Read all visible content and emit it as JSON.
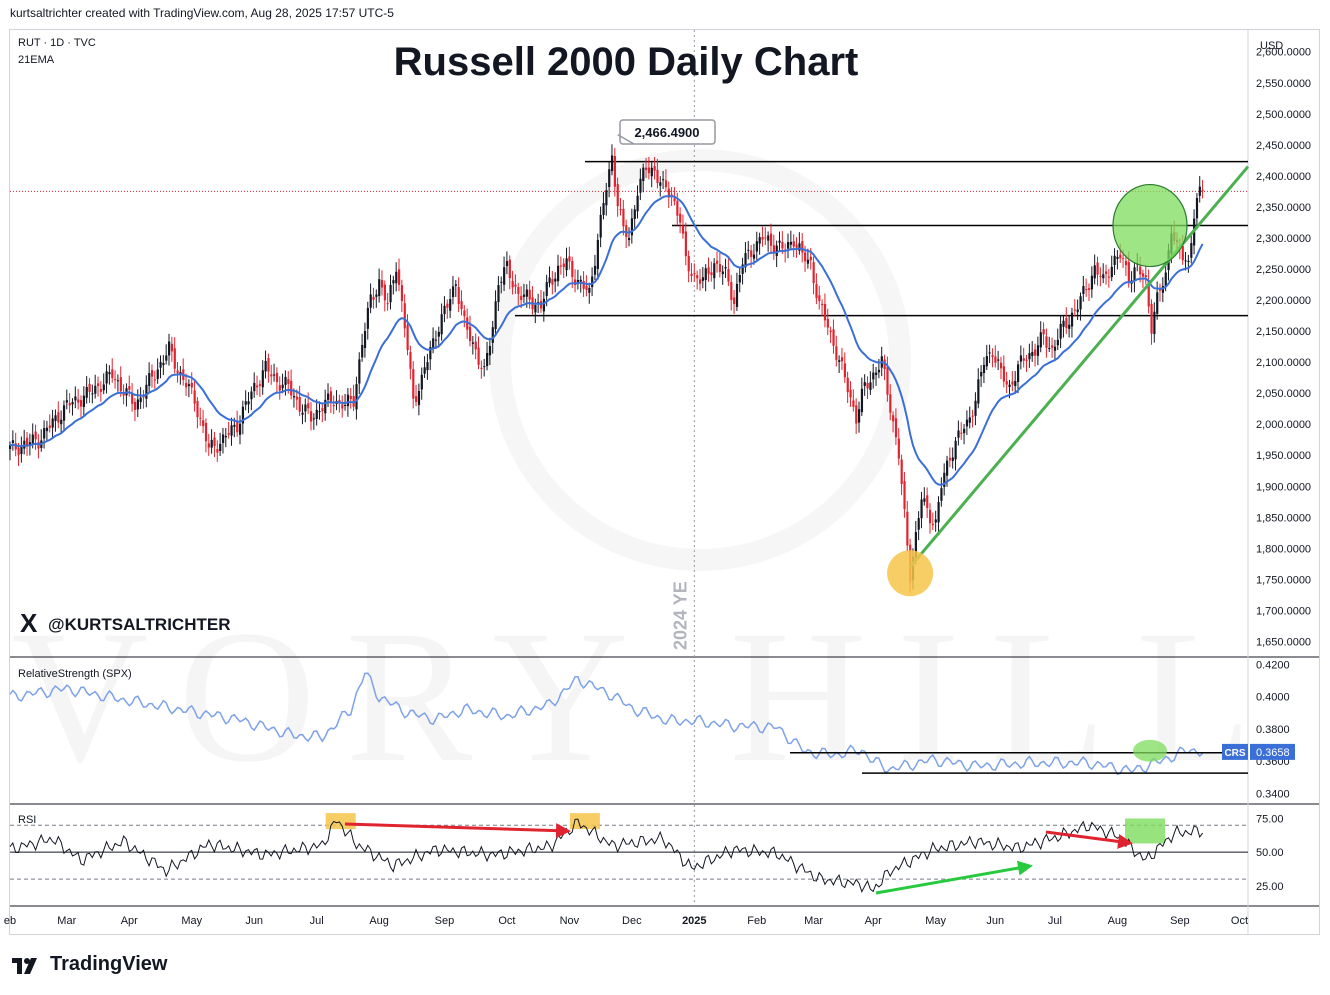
{
  "header": {
    "attribution": "kurtsaltrichter created with TradingView.com, Aug 28, 2025 17:57 UTC-5"
  },
  "footer": {
    "brand": "TradingView"
  },
  "watermark": {
    "handle": "@KURTSALTRICHTER",
    "brand": "IVORY HILL"
  },
  "colors": {
    "up": "#131722",
    "down": "#e0242f",
    "ema": "#3b6fd8",
    "rs": "#7da2e8",
    "trendline": "#4caf50",
    "support": "#000000",
    "rsi": "#131722",
    "callout_border": "#9598a1",
    "highlight_orange": "#f6c54a",
    "highlight_green": "#7ddc5c"
  },
  "chart_data": [
    {
      "type": "candlestick",
      "title": "Russell 2000 Daily Chart",
      "symbol_line": "RUT · 1D · TVC",
      "indicator": "21EMA",
      "currency": "USD",
      "y_ticks": [
        "2,600.0000",
        "2,550.0000",
        "2,500.0000",
        "2,450.0000",
        "2,400.0000",
        "2,350.0000",
        "2,300.0000",
        "2,250.0000",
        "2,200.0000",
        "2,150.0000",
        "2,100.0000",
        "2,050.0000",
        "2,000.0000",
        "1,950.0000",
        "1,900.0000",
        "1,850.0000",
        "1,800.0000",
        "1,750.0000",
        "1,700.0000",
        "1,650.0000"
      ],
      "ylim": [
        1625,
        2635
      ],
      "callout": {
        "label": "2,466.4900",
        "value": 2466.49
      },
      "vertical_label": "2024 YE",
      "horizontal_levels": [
        2423,
        2320,
        2175
      ],
      "dotted_level": 2375,
      "close_path": [
        [
          0,
          1960
        ],
        [
          10,
          1975
        ],
        [
          20,
          2030
        ],
        [
          28,
          2050
        ],
        [
          36,
          2080
        ],
        [
          44,
          2030
        ],
        [
          50,
          2075
        ],
        [
          56,
          2120
        ],
        [
          60,
          2080
        ],
        [
          65,
          2040
        ],
        [
          70,
          1960
        ],
        [
          75,
          1975
        ],
        [
          80,
          2000
        ],
        [
          86,
          2060
        ],
        [
          90,
          2090
        ],
        [
          94,
          2070
        ],
        [
          98,
          2060
        ],
        [
          102,
          2030
        ],
        [
          106,
          2010
        ],
        [
          110,
          2030
        ],
        [
          114,
          2040
        ],
        [
          118,
          2030
        ],
        [
          121,
          2040
        ],
        [
          124,
          2130
        ],
        [
          127,
          2200
        ],
        [
          130,
          2230
        ],
        [
          133,
          2190
        ],
        [
          136,
          2260
        ],
        [
          138,
          2190
        ],
        [
          140,
          2120
        ],
        [
          142,
          2040
        ],
        [
          145,
          2070
        ],
        [
          148,
          2120
        ],
        [
          151,
          2160
        ],
        [
          154,
          2190
        ],
        [
          157,
          2230
        ],
        [
          160,
          2160
        ],
        [
          164,
          2120
        ],
        [
          167,
          2080
        ],
        [
          170,
          2160
        ],
        [
          172,
          2230
        ],
        [
          175,
          2250
        ],
        [
          179,
          2210
        ],
        [
          183,
          2200
        ],
        [
          187,
          2190
        ],
        [
          190,
          2230
        ],
        [
          193,
          2250
        ],
        [
          196,
          2260
        ],
        [
          200,
          2230
        ],
        [
          204,
          2210
        ],
        [
          207,
          2300
        ],
        [
          210,
          2380
        ],
        [
          212,
          2430
        ],
        [
          214,
          2360
        ],
        [
          216,
          2310
        ],
        [
          218,
          2300
        ],
        [
          221,
          2380
        ],
        [
          224,
          2410
        ],
        [
          227,
          2410
        ],
        [
          230,
          2380
        ],
        [
          233,
          2370
        ],
        [
          236,
          2330
        ],
        [
          238,
          2260
        ],
        [
          241,
          2240
        ],
        [
          244,
          2230
        ],
        [
          248,
          2260
        ],
        [
          252,
          2240
        ],
        [
          255,
          2200
        ],
        [
          258,
          2260
        ],
        [
          261,
          2280
        ],
        [
          265,
          2300
        ],
        [
          269,
          2290
        ],
        [
          273,
          2280
        ],
        [
          276,
          2300
        ],
        [
          279,
          2270
        ],
        [
          282,
          2260
        ],
        [
          285,
          2190
        ],
        [
          288,
          2160
        ],
        [
          292,
          2100
        ],
        [
          295,
          2060
        ],
        [
          298,
          2010
        ],
        [
          301,
          2060
        ],
        [
          304,
          2080
        ],
        [
          307,
          2100
        ],
        [
          310,
          2030
        ],
        [
          313,
          1950
        ],
        [
          315,
          1850
        ],
        [
          317,
          1760
        ],
        [
          319,
          1820
        ],
        [
          321,
          1880
        ],
        [
          323,
          1860
        ],
        [
          326,
          1840
        ],
        [
          328,
          1900
        ],
        [
          331,
          1950
        ],
        [
          334,
          1980
        ],
        [
          337,
          2000
        ],
        [
          340,
          2040
        ],
        [
          343,
          2100
        ],
        [
          346,
          2120
        ],
        [
          349,
          2080
        ],
        [
          352,
          2060
        ],
        [
          355,
          2090
        ],
        [
          358,
          2110
        ],
        [
          361,
          2120
        ],
        [
          364,
          2140
        ],
        [
          367,
          2120
        ],
        [
          370,
          2150
        ],
        [
          373,
          2170
        ],
        [
          376,
          2190
        ],
        [
          379,
          2220
        ],
        [
          382,
          2250
        ],
        [
          385,
          2230
        ],
        [
          388,
          2260
        ],
        [
          391,
          2270
        ],
        [
          394,
          2240
        ],
        [
          397,
          2250
        ],
        [
          400,
          2230
        ],
        [
          402,
          2160
        ],
        [
          404,
          2200
        ],
        [
          407,
          2240
        ],
        [
          409,
          2320
        ],
        [
          411,
          2280
        ],
        [
          413,
          2270
        ],
        [
          415,
          2260
        ],
        [
          417,
          2340
        ],
        [
          419,
          2370
        ],
        [
          420,
          2380
        ]
      ],
      "x_ticks": [
        [
          "eb",
          0
        ],
        [
          "Mar",
          20
        ],
        [
          "Apr",
          42
        ],
        [
          "May",
          64
        ],
        [
          "Jun",
          86
        ],
        [
          "Jul",
          108
        ],
        [
          "Aug",
          130
        ],
        [
          "Sep",
          153
        ],
        [
          "Oct",
          175
        ],
        [
          "Nov",
          197
        ],
        [
          "Dec",
          219
        ],
        [
          "2025",
          241
        ],
        [
          "Feb",
          263
        ],
        [
          "Mar",
          283
        ],
        [
          "Apr",
          304
        ],
        [
          "May",
          326
        ],
        [
          "Jun",
          347
        ],
        [
          "Jul",
          368
        ],
        [
          "Aug",
          390
        ],
        [
          "Sep",
          412
        ],
        [
          "Oct",
          433
        ]
      ]
    },
    {
      "type": "line",
      "title": "RelativeStrength (SPX)",
      "y_ticks": [
        "0.4200",
        "0.4000",
        "0.3800",
        "0.3600",
        "0.3400"
      ],
      "ylim": [
        0.3335,
        0.424
      ],
      "last_label": "CRS",
      "last_value": "0.3658",
      "levels": [
        0.3653,
        0.3526
      ],
      "path": [
        [
          0,
          0.4
        ],
        [
          20,
          0.405
        ],
        [
          40,
          0.398
        ],
        [
          60,
          0.392
        ],
        [
          80,
          0.386
        ],
        [
          100,
          0.376
        ],
        [
          110,
          0.375
        ],
        [
          120,
          0.392
        ],
        [
          125,
          0.415
        ],
        [
          130,
          0.4
        ],
        [
          140,
          0.39
        ],
        [
          150,
          0.386
        ],
        [
          160,
          0.392
        ],
        [
          175,
          0.388
        ],
        [
          190,
          0.395
        ],
        [
          200,
          0.411
        ],
        [
          212,
          0.401
        ],
        [
          220,
          0.392
        ],
        [
          232,
          0.385
        ],
        [
          241,
          0.385
        ],
        [
          255,
          0.382
        ],
        [
          270,
          0.381
        ],
        [
          280,
          0.366
        ],
        [
          290,
          0.364
        ],
        [
          300,
          0.367
        ],
        [
          304,
          0.36
        ],
        [
          310,
          0.355
        ],
        [
          325,
          0.361
        ],
        [
          340,
          0.357
        ],
        [
          360,
          0.359
        ],
        [
          380,
          0.359
        ],
        [
          395,
          0.354
        ],
        [
          405,
          0.36
        ],
        [
          415,
          0.367
        ],
        [
          420,
          0.366
        ]
      ]
    },
    {
      "type": "line",
      "title": "RSI",
      "y_ticks": [
        "75.00",
        "50.00",
        "25.00"
      ],
      "ylim": [
        10,
        85
      ],
      "bands": [
        70,
        50,
        30
      ],
      "path": [
        [
          0,
          52
        ],
        [
          15,
          60
        ],
        [
          25,
          44
        ],
        [
          40,
          58
        ],
        [
          55,
          36
        ],
        [
          70,
          56
        ],
        [
          90,
          48
        ],
        [
          110,
          55
        ],
        [
          115,
          74
        ],
        [
          122,
          56
        ],
        [
          135,
          40
        ],
        [
          150,
          52
        ],
        [
          170,
          48
        ],
        [
          190,
          54
        ],
        [
          200,
          72
        ],
        [
          212,
          55
        ],
        [
          230,
          60
        ],
        [
          240,
          38
        ],
        [
          255,
          52
        ],
        [
          270,
          49
        ],
        [
          285,
          30
        ],
        [
          300,
          26
        ],
        [
          304,
          22
        ],
        [
          310,
          36
        ],
        [
          325,
          52
        ],
        [
          340,
          58
        ],
        [
          355,
          53
        ],
        [
          370,
          62
        ],
        [
          380,
          70
        ],
        [
          390,
          62
        ],
        [
          400,
          44
        ],
        [
          410,
          64
        ],
        [
          420,
          66
        ]
      ]
    }
  ]
}
